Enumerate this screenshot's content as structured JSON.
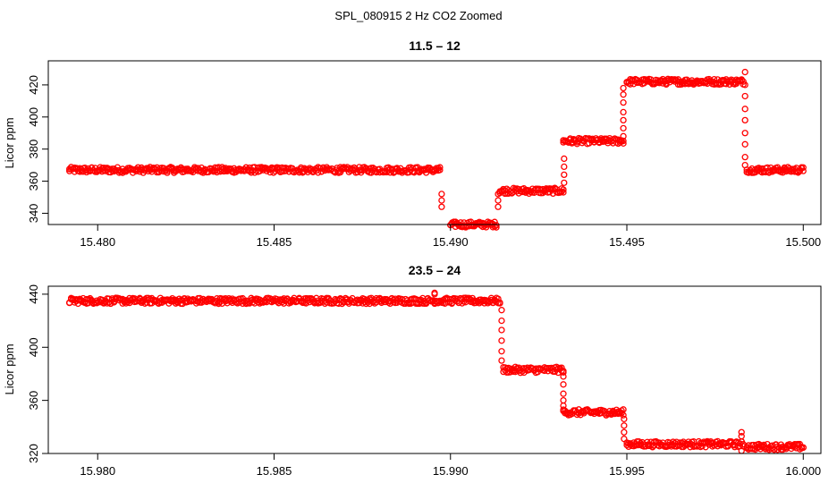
{
  "figure": {
    "title": "SPL_080915  2 Hz CO2 Zoomed"
  },
  "chart_data": [
    {
      "type": "scatter",
      "title": "11.5 – 12",
      "xlabel": "",
      "ylabel": "Licor ppm",
      "xlim": [
        15.4786,
        15.5005
      ],
      "ylim": [
        333,
        435
      ],
      "xticks": [
        "15.480",
        "15.485",
        "15.490",
        "15.495",
        "15.500"
      ],
      "yticks": [
        "340",
        "360",
        "380",
        "400",
        "420"
      ],
      "y_tick_values": [
        340,
        360,
        380,
        400,
        420
      ],
      "grid": false,
      "marker": "open-circle",
      "color": "#ff0000",
      "segments": [
        {
          "x_start": 15.4792,
          "x_end": 15.4897,
          "y": 367
        },
        {
          "x_start": 15.49,
          "x_end": 15.4913,
          "y": 333
        },
        {
          "x_start": 15.4914,
          "x_end": 15.4932,
          "y": 354
        },
        {
          "x_start": 15.4932,
          "x_end": 15.4949,
          "y": 385
        },
        {
          "x_start": 15.495,
          "x_end": 15.4983,
          "y": 422
        },
        {
          "x_start": 15.4984,
          "x_end": 15.5,
          "y": 367
        }
      ],
      "transitions": [
        {
          "x": 15.48975,
          "y": [
            352,
            348,
            344
          ]
        },
        {
          "x": 15.49135,
          "y": [
            344,
            348,
            352
          ]
        },
        {
          "x": 15.49322,
          "y": [
            359,
            364,
            369,
            374
          ]
        },
        {
          "x": 15.4949,
          "y": [
            388,
            393,
            398,
            403,
            409,
            414,
            418
          ]
        },
        {
          "x": 15.49835,
          "y": [
            428,
            420,
            413,
            405,
            398,
            390,
            383,
            375,
            370
          ]
        }
      ]
    },
    {
      "type": "scatter",
      "title": "23.5 – 24",
      "xlabel": "",
      "ylabel": "Licor ppm",
      "xlim": [
        15.9786,
        16.0005
      ],
      "ylim": [
        320,
        446
      ],
      "xticks": [
        "15.980",
        "15.985",
        "15.990",
        "15.995",
        "16.000"
      ],
      "yticks": [
        "320",
        "360",
        "400",
        "440"
      ],
      "y_tick_values": [
        320,
        360,
        400,
        440
      ],
      "grid": false,
      "marker": "open-circle",
      "color": "#ff0000",
      "segments": [
        {
          "x_start": 15.9792,
          "x_end": 15.9914,
          "y": 435
        },
        {
          "x_start": 15.9915,
          "x_end": 15.9932,
          "y": 383
        },
        {
          "x_start": 15.9932,
          "x_end": 15.9949,
          "y": 351
        },
        {
          "x_start": 15.995,
          "x_end": 15.9983,
          "y": 327
        },
        {
          "x_start": 15.9984,
          "x_end": 16.0,
          "y": 325
        }
      ],
      "transitions": [
        {
          "x": 15.99145,
          "y": [
            428,
            420,
            413,
            405,
            397,
            390
          ]
        },
        {
          "x": 15.9932,
          "y": [
            378,
            372,
            365,
            360,
            356
          ]
        },
        {
          "x": 15.99492,
          "y": [
            346,
            341,
            336,
            331
          ]
        }
      ],
      "spikes": [
        {
          "x": 15.98955,
          "y": [
            441,
            440
          ]
        },
        {
          "x": 15.99825,
          "y": [
            336,
            333,
            322
          ]
        }
      ]
    }
  ]
}
